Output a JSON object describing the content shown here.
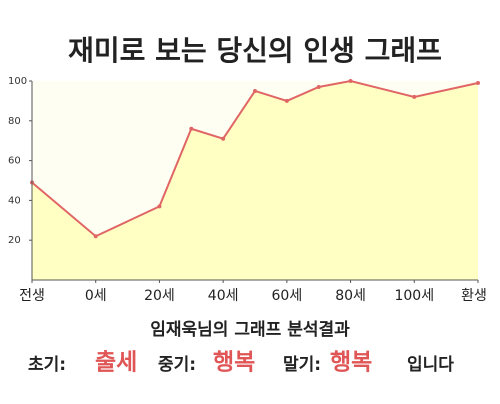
{
  "chart_data": {
    "type": "area",
    "title": "재미로 보는 당신의 인생 그래프",
    "x": [
      -20,
      0,
      20,
      30,
      40,
      50,
      60,
      70,
      80,
      100,
      120
    ],
    "values": [
      49,
      22,
      37,
      76,
      71,
      95,
      90,
      97,
      100,
      92,
      99
    ],
    "color": "#e06666",
    "fill": "#ffffc4",
    "xlim": [
      -20,
      120
    ],
    "xticks": [
      {
        "value": -20,
        "label": "전생"
      },
      {
        "value": 0,
        "label": "0세"
      },
      {
        "value": 20,
        "label": "20세"
      },
      {
        "value": 40,
        "label": "40세"
      },
      {
        "value": 60,
        "label": "60세"
      },
      {
        "value": 80,
        "label": "80세"
      },
      {
        "value": 100,
        "label": "100세"
      },
      {
        "value": 120,
        "label": "환생"
      }
    ],
    "ylim": [
      0,
      100
    ],
    "yticks": [
      20,
      40,
      60,
      80,
      100
    ],
    "grid": false
  },
  "result": {
    "title": "임재욱님의 그래프 분석결과",
    "items": [
      {
        "label": "초기:",
        "value": "출세"
      },
      {
        "label": "중기:",
        "value": "행복"
      },
      {
        "label": "말기:",
        "value": "행복"
      }
    ],
    "suffix": "입니다"
  }
}
